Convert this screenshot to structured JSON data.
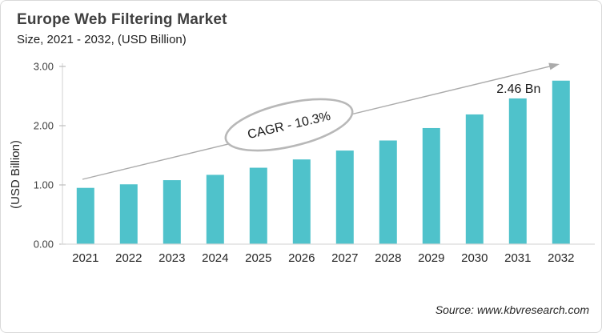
{
  "header": {
    "title": "Europe Web Filtering Market",
    "subtitle": "Size, 2021 - 2032, (USD Billion)"
  },
  "source": {
    "label": "Source: www.kbvresearch.com"
  },
  "colors": {
    "bar": "#4FC2CB",
    "axis_line": "#d9d9d9",
    "tick_mark": "#bfbfbf",
    "tick_text": "#404040",
    "label_text": "#262626",
    "annotation_gray": "#ababab",
    "ellipse_stroke": "#b8b8b8",
    "annotation_text": "#1a1a1a"
  },
  "chart_data": {
    "type": "bar",
    "title": "Europe Web Filtering Market",
    "subtitle": "Size, 2021 - 2032, (USD Billion)",
    "categories": [
      "2021",
      "2022",
      "2023",
      "2024",
      "2025",
      "2026",
      "2027",
      "2028",
      "2029",
      "2030",
      "2031",
      "2032"
    ],
    "values": [
      0.95,
      1.01,
      1.08,
      1.17,
      1.29,
      1.43,
      1.58,
      1.75,
      1.96,
      2.19,
      2.46,
      2.76
    ],
    "xlabel": "",
    "ylabel": "(USD Billion)",
    "ylim": [
      0,
      3
    ],
    "ytick_labels": [
      "0.00",
      "1.00",
      "2.00",
      "3.00"
    ],
    "ytick_values": [
      0,
      1,
      2,
      3
    ],
    "grid": false,
    "legend": "none",
    "annotations": {
      "cagr_label": "CAGR - 10.3%",
      "value_label": {
        "text": "2.46 Bn",
        "category": "2031"
      },
      "trend_arrow": true
    }
  }
}
